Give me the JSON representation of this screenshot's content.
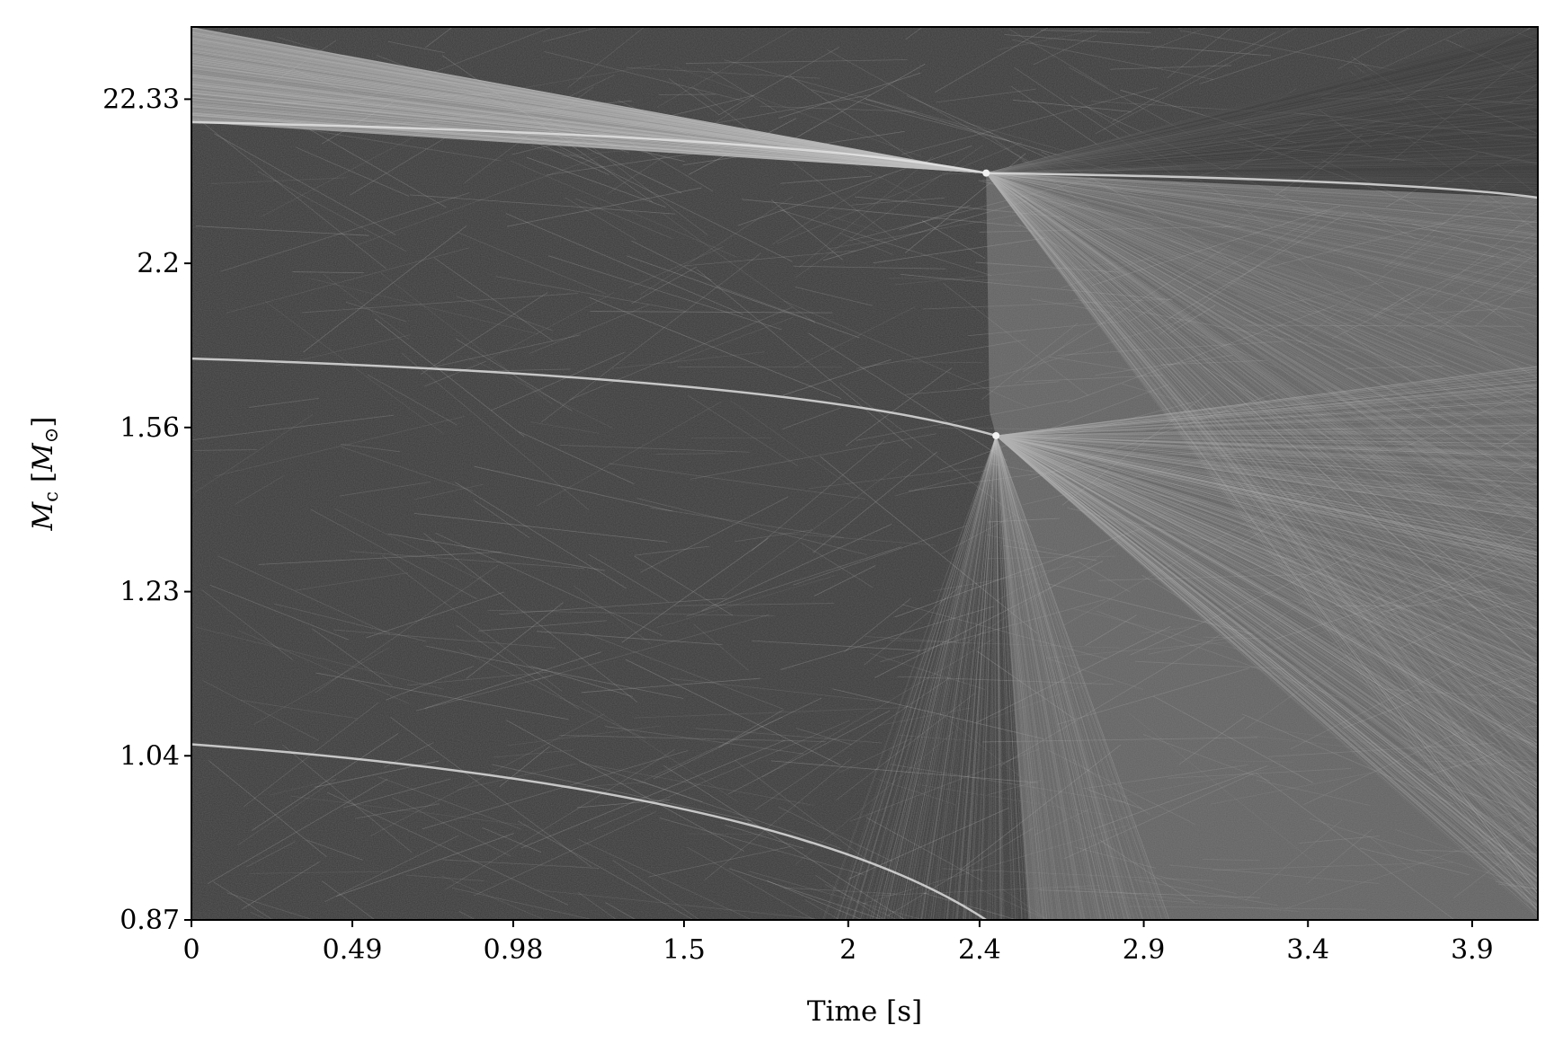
{
  "chart_data": {
    "type": "heatmap",
    "title": "",
    "xlabel": "Time [s]",
    "ylabel": {
      "symbol": "M",
      "subscript": "c",
      "unit_open": " [",
      "unit_symbol": "M",
      "unit_subscript": "⊙",
      "unit_close": "]"
    },
    "x_ticks": [
      "0",
      "0.49",
      "0.98",
      "1.5",
      "2",
      "2.4",
      "2.9",
      "3.4",
      "3.9"
    ],
    "x_tick_values": [
      0,
      0.49,
      0.98,
      1.5,
      2.0,
      2.4,
      2.9,
      3.4,
      3.9
    ],
    "xlim": [
      0,
      4.1
    ],
    "y_ticks": [
      "0.87",
      "1.04",
      "1.23",
      "1.56",
      "2.2",
      "22.33"
    ],
    "y_scale": "categorical-band (non-uniform, tick labels evenly spaced)",
    "y_band_range": [
      0,
      5.44
    ],
    "grid": false,
    "legend": "none",
    "colormap": "grayscale",
    "colors": {
      "background": "#3a3a3a",
      "traces": "#c8c8c8",
      "axis": "#000000"
    },
    "features": [
      {
        "kind": "band_edge",
        "x_start": 0.0,
        "x_end": 2.42,
        "y_start_band": 1.07,
        "y_end_band": 0.0,
        "curvature": "bends down near end"
      },
      {
        "kind": "band_edge",
        "x_start": 0.0,
        "x_end": 2.45,
        "y_start_band": 3.42,
        "y_end_band": 2.95,
        "curvature": "bends down near end"
      },
      {
        "kind": "band_edge",
        "x_start": 0.0,
        "x_end": 2.42,
        "y_start_band": 4.86,
        "y_end_band": 4.55
      },
      {
        "kind": "convergence_point",
        "x": 2.42,
        "y_band": 4.55
      },
      {
        "kind": "convergence_point",
        "x": 2.45,
        "y_band": 2.95
      },
      {
        "kind": "band_edge",
        "x_start": 2.42,
        "x_end": 4.1,
        "y_start_band": 4.55,
        "y_end_band": 4.4
      }
    ]
  }
}
